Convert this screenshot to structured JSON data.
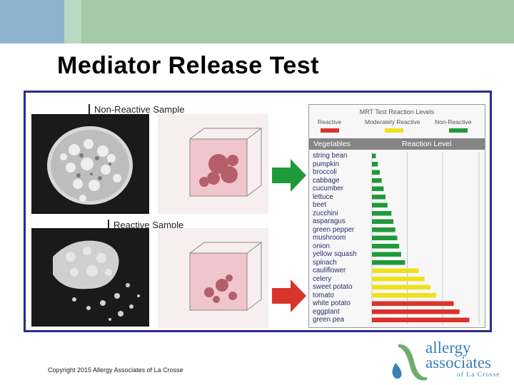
{
  "slide": {
    "title": "Mediator Release Test",
    "copyright": "Copyright 2015 Allergy Associates of La Crosse"
  },
  "figure": {
    "non_reactive_label": "Non-Reactive Sample",
    "reactive_label": "Reactive Sample"
  },
  "chart_data": {
    "type": "bar",
    "title": "MRT Test Reaction Levels",
    "legend": [
      {
        "label": "Reactive",
        "color": "#d9342b"
      },
      {
        "label": "Moderately Reactive",
        "color": "#f0e01e"
      },
      {
        "label": "Non-Reactive",
        "color": "#1f9a3a"
      }
    ],
    "column_headers": {
      "categories": "Vegetables",
      "values": "Reaction Level"
    },
    "categories": [
      "string bean",
      "pumpkin",
      "broccoli",
      "cabbage",
      "cucumber",
      "lettuce",
      "beet",
      "zucchini",
      "asparagus",
      "green pepper",
      "mushroom",
      "onion",
      "yellow squash",
      "spinach",
      "cauliflower",
      "celery",
      "sweet potato",
      "tomato",
      "white potato",
      "eggplant",
      "green pea"
    ],
    "values": [
      2,
      3,
      4,
      5,
      6,
      7,
      8,
      10,
      11,
      12,
      13,
      14,
      15,
      17,
      24,
      27,
      30,
      33,
      42,
      45,
      50
    ],
    "levels": [
      "non-reactive",
      "non-reactive",
      "non-reactive",
      "non-reactive",
      "non-reactive",
      "non-reactive",
      "non-reactive",
      "non-reactive",
      "non-reactive",
      "non-reactive",
      "non-reactive",
      "non-reactive",
      "non-reactive",
      "non-reactive",
      "moderate",
      "moderate",
      "moderate",
      "moderate",
      "reactive",
      "reactive",
      "reactive"
    ],
    "xlim": [
      0,
      55
    ],
    "grid": true
  },
  "logo": {
    "line1": "allergy",
    "line2": "associates",
    "line3": "of La Crosse"
  },
  "colors": {
    "top_bar": "#a5c9a5",
    "top_bar_accent": "#8db3cf",
    "frame_border": "#2c2c8a",
    "arrow_green": "#1f9a3a",
    "arrow_red": "#d9342b",
    "logo_blue": "#3a7fb5",
    "logo_green": "#6fae6a"
  }
}
